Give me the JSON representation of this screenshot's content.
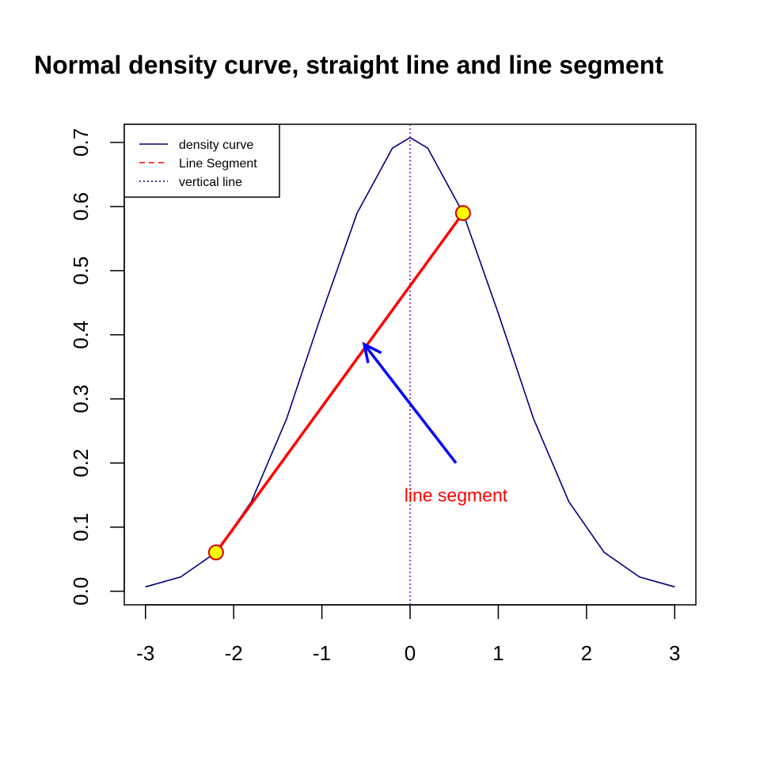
{
  "chart_data": {
    "type": "line",
    "title": "Normal density curve, straight line and line segment",
    "xlabel": "",
    "ylabel": "",
    "xlim": [
      -3.24,
      3.24
    ],
    "ylim": [
      -0.0212,
      0.7282
    ],
    "x_ticks": [
      -3,
      -2,
      -1,
      0,
      1,
      2,
      3
    ],
    "x_tick_labels": [
      "-3",
      "-2",
      "-1",
      "0",
      "1",
      "2",
      "3"
    ],
    "y_ticks": [
      0.0,
      0.1,
      0.2,
      0.3,
      0.4,
      0.5,
      0.6,
      0.7
    ],
    "y_tick_labels": [
      "0.0",
      "0.1",
      "0.2",
      "0.3",
      "0.4",
      "0.5",
      "0.6",
      "0.7"
    ],
    "grid": false,
    "series": [
      {
        "name": "density curve",
        "color": "#000080",
        "x": [
          -3.0,
          -2.6,
          -2.2,
          -1.8,
          -1.4,
          -1.0,
          -0.6,
          -0.2,
          0.0,
          0.2,
          0.6,
          1.0,
          1.4,
          1.8,
          2.2,
          2.6,
          3.0
        ],
        "y": [
          0.0068,
          0.0222,
          0.0606,
          0.1396,
          0.2688,
          0.4335,
          0.5898,
          0.6911,
          0.7074,
          0.6911,
          0.5898,
          0.4335,
          0.2688,
          0.1396,
          0.0606,
          0.0222,
          0.0068
        ]
      }
    ],
    "segment": {
      "name": "Line Segment",
      "color": "#ff0000",
      "x0": -2.2,
      "y0": 0.0606,
      "x1": 0.6,
      "y1": 0.5898
    },
    "points": [
      {
        "x": -2.2,
        "y": 0.0606,
        "fill": "#ffff00",
        "stroke": "#cc0000"
      },
      {
        "x": 0.6,
        "y": 0.5898,
        "fill": "#ffff00",
        "stroke": "#cc0000"
      }
    ],
    "vertical_line": {
      "name": "vertical line",
      "x": 0,
      "color": "#6a0dad"
    },
    "arrow": {
      "x0": 0.52,
      "y0": 0.2,
      "x1": -0.52,
      "y1": 0.385,
      "color": "#0000ff"
    },
    "annotation": {
      "text": "line segment",
      "x": 0.52,
      "y": 0.15,
      "color": "#ff0000"
    },
    "legend": {
      "position": "top-left",
      "entries": [
        {
          "label": "density curve",
          "color": "#000080",
          "style": "solid"
        },
        {
          "label": "Line Segment",
          "color": "#ff0000",
          "style": "dashed"
        },
        {
          "label": "vertical line",
          "color": "#000080",
          "style": "dotted"
        }
      ]
    }
  }
}
